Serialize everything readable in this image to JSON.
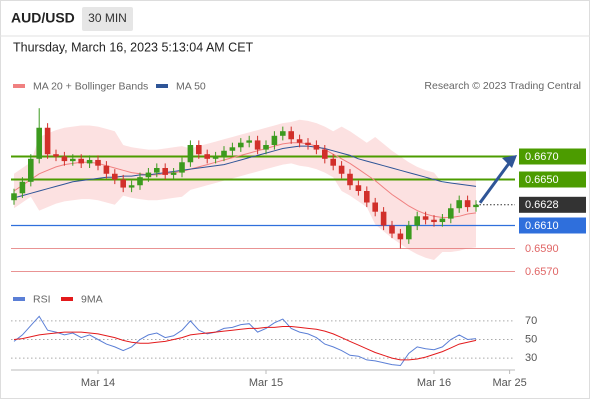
{
  "header": {
    "symbol": "AUD/USD",
    "interval": "30 MIN",
    "timestamp": "Thursday, March 16, 2023 5:13:04 AM CET"
  },
  "attribution": "Research © 2023 Trading Central",
  "chart_data": [
    {
      "type": "candlestick",
      "categories": [
        null,
        null,
        null,
        null,
        null,
        null,
        null,
        null,
        null,
        null,
        "Mar 14",
        null,
        null,
        null,
        null,
        null,
        null,
        null,
        null,
        null,
        null,
        null,
        null,
        null,
        null,
        null,
        null,
        null,
        null,
        null,
        "Mar 15",
        null,
        null,
        null,
        null,
        null,
        null,
        null,
        null,
        null,
        null,
        null,
        null,
        null,
        null,
        null,
        null,
        null,
        null,
        null,
        "Mar 16",
        null,
        null,
        null,
        null,
        null,
        null,
        null,
        null,
        "Mar 25"
      ],
      "up_color": "#3c9a1e",
      "down_color": "#d12f2a",
      "open": [
        0.6632,
        0.6638,
        0.6648,
        0.6668,
        0.6695,
        0.6672,
        0.667,
        0.6666,
        0.6668,
        0.6664,
        0.6667,
        0.6662,
        0.6655,
        0.665,
        0.6643,
        0.6645,
        0.6652,
        0.6656,
        0.666,
        0.6654,
        0.6656,
        0.6665,
        0.668,
        0.6672,
        0.6668,
        0.667,
        0.6675,
        0.6678,
        0.6682,
        0.6684,
        0.6676,
        0.668,
        0.6688,
        0.6692,
        0.6685,
        0.6682,
        0.668,
        0.6676,
        0.6668,
        0.6662,
        0.6655,
        0.6645,
        0.664,
        0.663,
        0.6622,
        0.661,
        0.6603,
        0.6598,
        0.661,
        0.6618,
        0.6615,
        0.6613,
        0.6616,
        0.6625,
        0.6632,
        0.6626,
        null,
        null,
        null,
        null
      ],
      "high": [
        0.6642,
        0.6652,
        0.6672,
        0.6712,
        0.6699,
        0.6676,
        0.6674,
        0.6672,
        0.6672,
        0.6671,
        0.6671,
        0.6666,
        0.6659,
        0.6654,
        0.6649,
        0.6656,
        0.666,
        0.6664,
        0.6664,
        0.666,
        0.6669,
        0.6684,
        0.6684,
        0.6676,
        0.6674,
        0.6679,
        0.6682,
        0.6686,
        0.6688,
        0.6688,
        0.6684,
        0.6692,
        0.6696,
        0.6696,
        0.6689,
        0.6686,
        0.6684,
        0.668,
        0.6672,
        0.6666,
        0.6659,
        0.6649,
        0.6644,
        0.6634,
        0.6626,
        0.6614,
        0.6607,
        0.6614,
        0.6622,
        0.6622,
        0.6619,
        0.662,
        0.6629,
        0.6636,
        0.6636,
        0.6632,
        null,
        null,
        null,
        null
      ],
      "low": [
        0.6628,
        0.6634,
        0.6644,
        0.6664,
        0.6668,
        0.6666,
        0.6662,
        0.6662,
        0.666,
        0.666,
        0.6658,
        0.6651,
        0.6646,
        0.6639,
        0.6639,
        0.6641,
        0.6648,
        0.6652,
        0.665,
        0.665,
        0.6652,
        0.6661,
        0.6668,
        0.6664,
        0.6664,
        0.6666,
        0.6671,
        0.6674,
        0.6678,
        0.6672,
        0.6672,
        0.6676,
        0.6684,
        0.6681,
        0.6678,
        0.6676,
        0.6672,
        0.6664,
        0.6658,
        0.6651,
        0.6641,
        0.6636,
        0.6626,
        0.6618,
        0.6606,
        0.6599,
        0.659,
        0.6594,
        0.6606,
        0.6611,
        0.6609,
        0.6609,
        0.6612,
        0.6621,
        0.6622,
        0.6622,
        null,
        null,
        null,
        null
      ],
      "close": [
        0.6638,
        0.6648,
        0.6668,
        0.6695,
        0.6672,
        0.667,
        0.6666,
        0.6668,
        0.6664,
        0.6667,
        0.6662,
        0.6655,
        0.665,
        0.6643,
        0.6645,
        0.6652,
        0.6656,
        0.666,
        0.6654,
        0.6656,
        0.6665,
        0.668,
        0.6672,
        0.6668,
        0.667,
        0.6675,
        0.6678,
        0.6682,
        0.6684,
        0.6676,
        0.668,
        0.6688,
        0.6692,
        0.6685,
        0.6682,
        0.668,
        0.6676,
        0.6668,
        0.6662,
        0.6655,
        0.6645,
        0.664,
        0.663,
        0.6622,
        0.661,
        0.6603,
        0.6598,
        0.661,
        0.6618,
        0.6615,
        0.6613,
        0.6616,
        0.6625,
        0.6632,
        0.6626,
        0.6628,
        null,
        null,
        null,
        null
      ],
      "bands": {
        "color": "#fbd9d9",
        "upper": [
          0.6655,
          0.666,
          0.6665,
          0.6687,
          0.669,
          0.6693,
          0.6695,
          0.6696,
          0.6697,
          0.6697,
          0.6696,
          0.6694,
          0.6692,
          0.668,
          0.6678,
          0.6677,
          0.6676,
          0.6676,
          0.6677,
          0.6678,
          0.6679,
          0.6677,
          0.6679,
          0.6681,
          0.6683,
          0.6685,
          0.6687,
          0.6689,
          0.6691,
          0.6693,
          0.6695,
          0.6697,
          0.6699,
          0.67,
          0.6702,
          0.6701,
          0.6699,
          0.6696,
          0.6692,
          0.6696,
          0.6692,
          0.6687,
          0.6682,
          0.6687,
          0.6681,
          0.6675,
          0.667,
          0.6665,
          0.6661,
          0.6658,
          0.6656,
          0.6647,
          0.6647,
          0.6648,
          0.665,
          0.6651,
          null,
          null,
          null,
          null
        ],
        "lower": [
          0.6625,
          0.663,
          0.6635,
          0.6623,
          0.6626,
          0.6629,
          0.6631,
          0.6632,
          0.6633,
          0.6633,
          0.6632,
          0.663,
          0.6628,
          0.6636,
          0.6634,
          0.6633,
          0.6632,
          0.6632,
          0.6633,
          0.6634,
          0.6635,
          0.6641,
          0.6643,
          0.6645,
          0.6647,
          0.6649,
          0.6651,
          0.6653,
          0.6655,
          0.6657,
          0.6659,
          0.6661,
          0.6663,
          0.6664,
          0.6662,
          0.6661,
          0.6659,
          0.6656,
          0.6652,
          0.664,
          0.6636,
          0.6631,
          0.6626,
          0.6611,
          0.6605,
          0.6599,
          0.6594,
          0.6589,
          0.6585,
          0.6582,
          0.658,
          0.6587,
          0.6587,
          0.6588,
          0.659,
          0.6591,
          null,
          null,
          null,
          null
        ]
      },
      "series": [
        {
          "name": "MA 20 + Bollinger Bands",
          "color": "#f08080",
          "values": [
            0.664,
            0.6645,
            0.665,
            0.6655,
            0.6658,
            0.6661,
            0.6663,
            0.6664,
            0.6665,
            0.6665,
            0.6664,
            0.6662,
            0.666,
            0.6658,
            0.6656,
            0.6655,
            0.6654,
            0.6654,
            0.6655,
            0.6656,
            0.6657,
            0.6659,
            0.6661,
            0.6663,
            0.6665,
            0.6667,
            0.6669,
            0.6671,
            0.6673,
            0.6675,
            0.6677,
            0.6679,
            0.6681,
            0.6682,
            0.6682,
            0.6681,
            0.6679,
            0.6676,
            0.6672,
            0.6668,
            0.6664,
            0.6659,
            0.6654,
            0.6649,
            0.6643,
            0.6637,
            0.6632,
            0.6627,
            0.6623,
            0.662,
            0.6618,
            0.6617,
            0.6617,
            0.6618,
            0.662,
            0.6621,
            null,
            null,
            null,
            null
          ]
        },
        {
          "name": "MA 50",
          "color": "#2f5597",
          "values": [
            0.6634,
            0.6636,
            0.6638,
            0.664,
            0.6642,
            0.6644,
            0.6646,
            0.6648,
            0.6649,
            0.665,
            0.6651,
            0.6652,
            0.6652,
            0.6653,
            0.6653,
            0.6654,
            0.6654,
            0.6655,
            0.6656,
            0.6657,
            0.6658,
            0.6659,
            0.666,
            0.6661,
            0.6662,
            0.6663,
            0.6665,
            0.6667,
            0.6669,
            0.6671,
            0.6673,
            0.6675,
            0.6677,
            0.6678,
            0.6679,
            0.6679,
            0.6678,
            0.6677,
            0.6675,
            0.6673,
            0.6671,
            0.6668,
            0.6666,
            0.6664,
            0.6662,
            0.666,
            0.6658,
            0.6656,
            0.6654,
            0.6652,
            0.665,
            0.6648,
            0.6647,
            0.6646,
            0.6645,
            0.6644,
            null,
            null,
            null,
            null
          ]
        }
      ],
      "ylim": [
        0.656,
        0.672
      ],
      "levels": [
        {
          "value": 0.667,
          "label": "0.6670",
          "color": "#4c9c00",
          "boxed": true
        },
        {
          "value": 0.665,
          "label": "0.6650",
          "color": "#4c9c00",
          "boxed": true
        },
        {
          "value": 0.6628,
          "label": "0.6628",
          "color": "#333333",
          "boxed": true
        },
        {
          "value": 0.661,
          "label": "0.6610",
          "color": "#2f6fdc",
          "boxed": true
        },
        {
          "value": 0.659,
          "label": "0.6590",
          "color": "#e06666",
          "boxed": false
        },
        {
          "value": 0.657,
          "label": "0.6570",
          "color": "#e06666",
          "boxed": false
        }
      ]
    },
    {
      "type": "line",
      "series": [
        {
          "name": "RSI",
          "color": "#5b7fd6",
          "values": [
            48,
            55,
            65,
            75,
            60,
            58,
            55,
            57,
            52,
            55,
            50,
            45,
            42,
            38,
            42,
            50,
            55,
            57,
            52,
            54,
            60,
            70,
            60,
            56,
            58,
            62,
            63,
            66,
            67,
            58,
            62,
            68,
            72,
            62,
            58,
            56,
            52,
            45,
            42,
            38,
            33,
            32,
            28,
            27,
            25,
            23,
            22,
            35,
            42,
            40,
            39,
            42,
            50,
            55,
            50,
            51,
            null,
            null,
            null,
            null
          ]
        },
        {
          "name": "9MA",
          "color": "#e31a1c",
          "values": [
            50,
            51,
            53,
            55,
            56,
            57,
            58,
            58,
            58,
            57,
            56,
            54,
            52,
            49,
            47,
            46,
            46,
            47,
            48,
            50,
            52,
            55,
            56,
            57,
            58,
            59,
            60,
            61,
            62,
            62,
            63,
            63,
            64,
            64,
            63,
            62,
            61,
            59,
            56,
            52,
            48,
            44,
            40,
            36,
            33,
            30,
            28,
            28,
            29,
            31,
            34,
            37,
            41,
            45,
            47,
            49,
            null,
            null,
            null,
            null
          ]
        }
      ],
      "ylim": [
        15,
        85
      ],
      "yticks": [
        70,
        50,
        30
      ],
      "grid": true
    }
  ]
}
